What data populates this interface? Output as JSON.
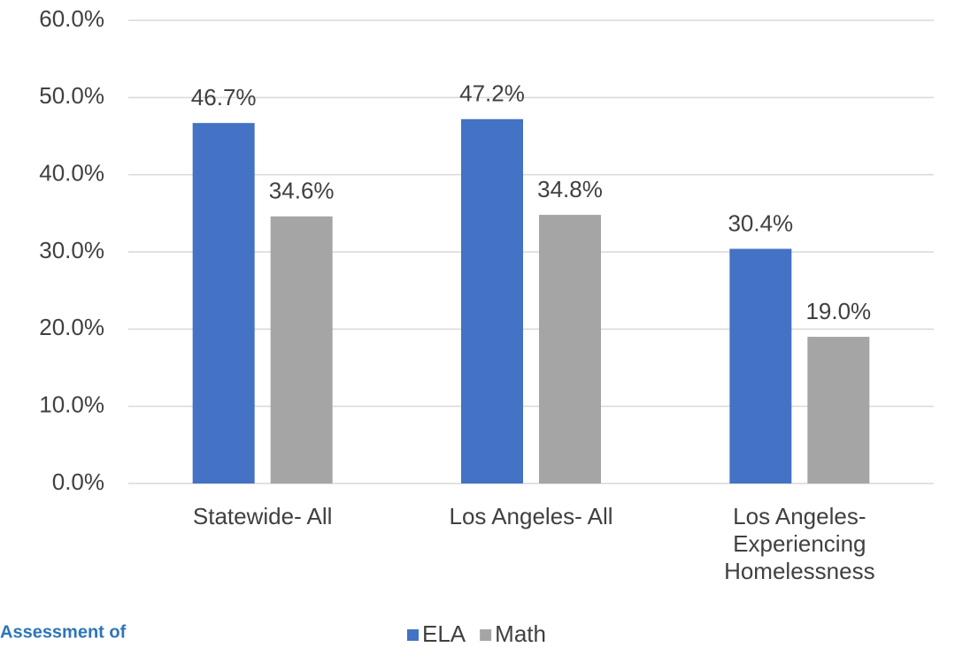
{
  "chart_data": {
    "type": "bar",
    "categories": [
      "Statewide- All",
      "Los Angeles- All",
      "Los Angeles- Experiencing Homelessness"
    ],
    "series": [
      {
        "name": "ELA",
        "color": "#4472c4",
        "values": [
          46.7,
          47.2,
          30.4
        ],
        "value_labels": [
          "46.7%",
          "47.2%",
          "30.4%"
        ]
      },
      {
        "name": "Math",
        "color": "#a5a5a5",
        "values": [
          34.6,
          34.8,
          19.0
        ],
        "value_labels": [
          "34.6%",
          "34.8%",
          "19.0%"
        ]
      }
    ],
    "ylim": [
      0,
      60
    ],
    "yticks": [
      {
        "value": 0,
        "label": "0.0%"
      },
      {
        "value": 10,
        "label": "10.0%"
      },
      {
        "value": 20,
        "label": "20.0%"
      },
      {
        "value": 30,
        "label": "30.0%"
      },
      {
        "value": 40,
        "label": "40.0%"
      },
      {
        "value": 50,
        "label": "50.0%"
      },
      {
        "value": 60,
        "label": "60.0%"
      }
    ],
    "grid": true,
    "legend": "bottom",
    "annotation": "Assessment of"
  }
}
